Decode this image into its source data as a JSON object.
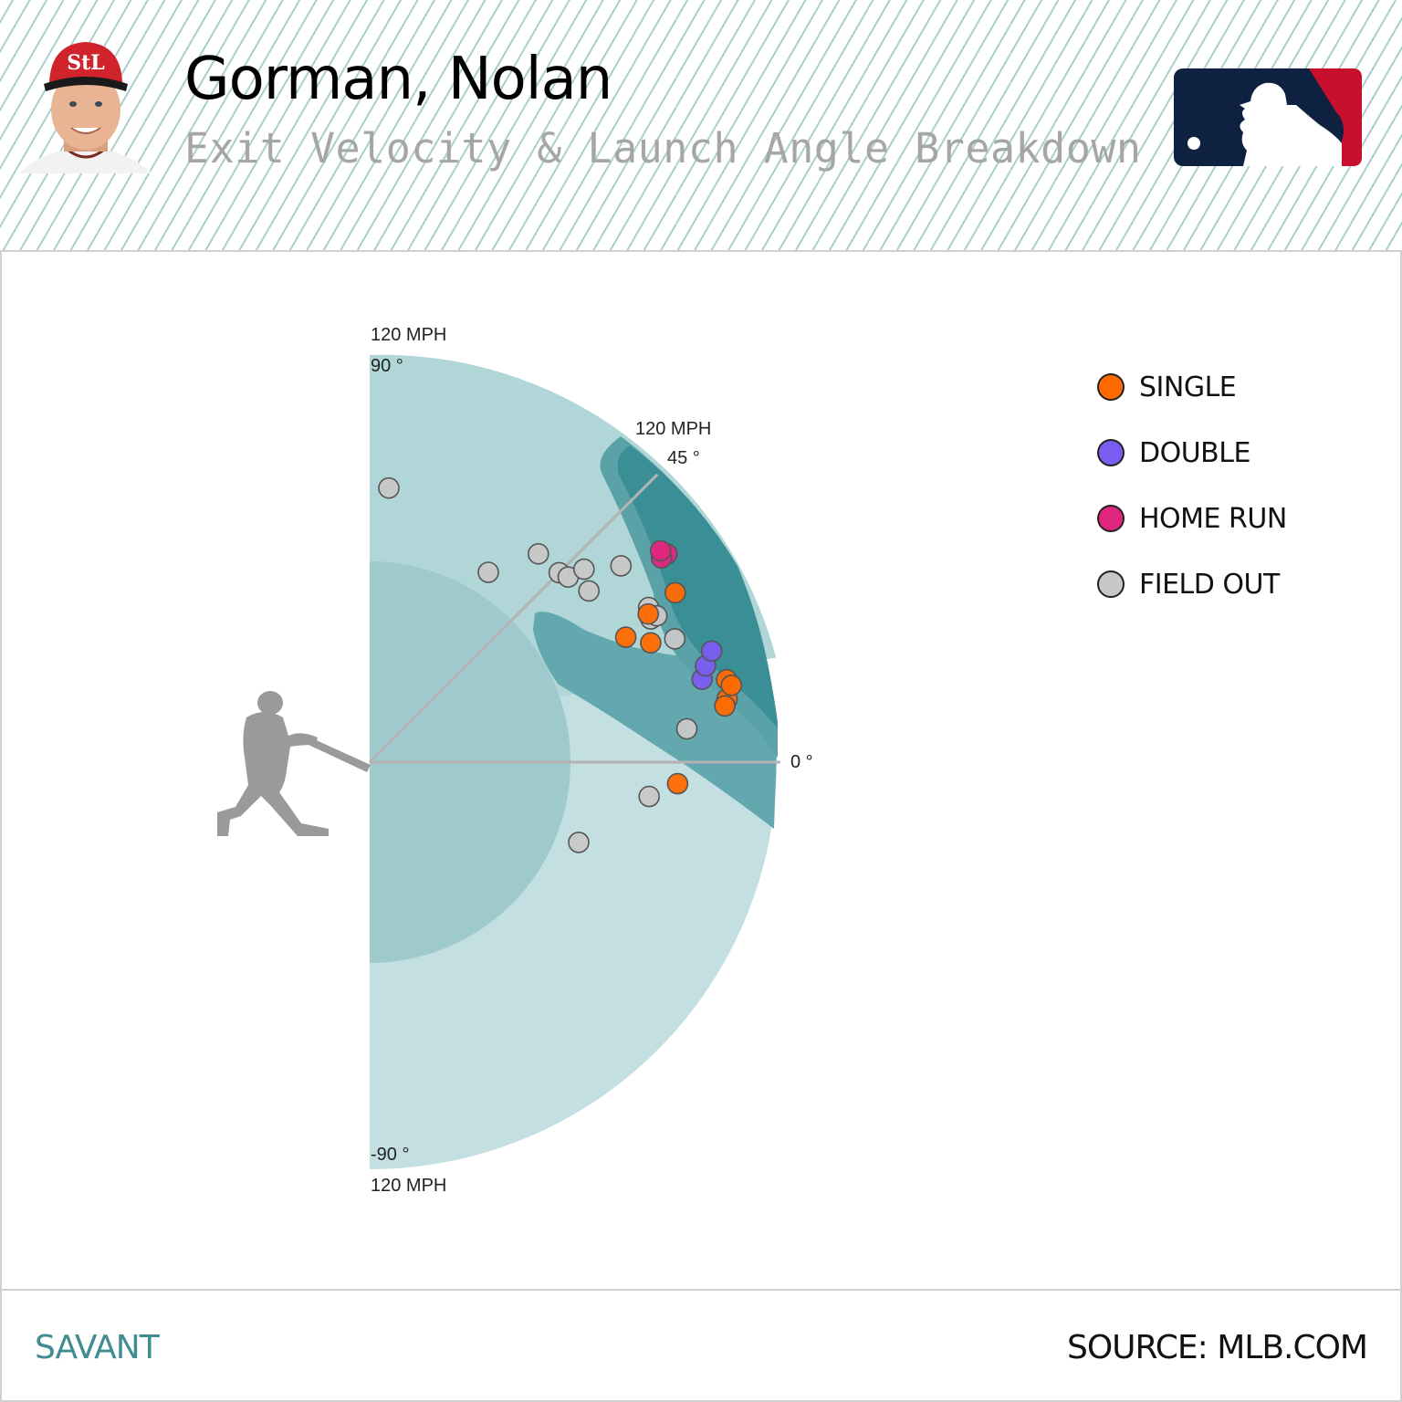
{
  "header": {
    "player_name": "Gorman, Nolan",
    "subtitle": "Exit Velocity & Launch Angle Breakdown",
    "team_cap_logo": "STL",
    "league_logo": "mlb-logo"
  },
  "axis_labels": {
    "top_speed": "120 MPH",
    "top_angle": "90 °",
    "mid_speed": "120 MPH",
    "mid_angle": "45 °",
    "zero_angle": "0 °",
    "bottom_angle": "-90 °",
    "bottom_speed": "120 MPH"
  },
  "legend": {
    "items": [
      {
        "label": "SINGLE",
        "color": "#ff6a00"
      },
      {
        "label": "DOUBLE",
        "color": "#7b5cf0"
      },
      {
        "label": "HOME RUN",
        "color": "#e0267f"
      },
      {
        "label": "FIELD OUT",
        "color": "#c8c8c8"
      }
    ]
  },
  "colors": {
    "outer_zone": "#c3dfe1",
    "upper_zone": "#b1d6d8",
    "inner_zone": "#9ecacd",
    "solid_contact": "#62a8ae",
    "barrel_edge": "#5aa1a8",
    "barrel": "#3a8f96",
    "axis_line": "#b3b3b3"
  },
  "chart_data": {
    "type": "scatter",
    "title": "Exit Velocity & Launch Angle Breakdown",
    "subtitle": "Gorman, Nolan",
    "coordinate_system": "polar (launch angle vs exit velocity)",
    "angle_range_deg": [
      -90,
      90
    ],
    "radius_range_mph": [
      0,
      120
    ],
    "angle_ticks": [
      "90 °",
      "45 °",
      "0 °",
      "-90 °"
    ],
    "radius_ticks": [
      "120 MPH"
    ],
    "legend_position": "right",
    "series": [
      {
        "name": "SINGLE",
        "color": "#ff6a00",
        "points": [
          {
            "ev": 103,
            "la": 29
          },
          {
            "ev": 93,
            "la": 28
          },
          {
            "ev": 90,
            "la": 23
          },
          {
            "ev": 84,
            "la": 26
          },
          {
            "ev": 108,
            "la": 13
          },
          {
            "ev": 107,
            "la": 10
          },
          {
            "ev": 106,
            "la": 9
          },
          {
            "ev": 109,
            "la": 12
          },
          {
            "ev": 91,
            "la": -4
          }
        ]
      },
      {
        "name": "DOUBLE",
        "color": "#7b5cf0",
        "points": [
          {
            "ev": 101,
            "la": 14
          },
          {
            "ev": 103,
            "la": 16
          },
          {
            "ev": 106,
            "la": 18
          }
        ]
      },
      {
        "name": "HOME RUN",
        "color": "#e0267f",
        "points": [
          {
            "ev": 107,
            "la": 35
          },
          {
            "ev": 105,
            "la": 35
          },
          {
            "ev": 106,
            "la": 36
          }
        ]
      },
      {
        "name": "FIELD OUT",
        "color": "#c8c8c8",
        "points": [
          {
            "ev": 81,
            "la": 86
          },
          {
            "ev": 79,
            "la": 51
          },
          {
            "ev": 79,
            "la": 45
          },
          {
            "ev": 80,
            "la": 43
          },
          {
            "ev": 66,
            "la": 58
          },
          {
            "ev": 82,
            "la": 38
          },
          {
            "ev": 94,
            "la": 38
          },
          {
            "ev": 93,
            "la": 27
          },
          {
            "ev": 94,
            "la": 29
          },
          {
            "ev": 95,
            "la": 27
          },
          {
            "ev": 97,
            "la": 22
          },
          {
            "ev": 94,
            "la": 6
          },
          {
            "ev": 83,
            "la": -7
          },
          {
            "ev": 66,
            "la": -21
          },
          {
            "ev": 85,
            "la": 42
          }
        ]
      }
    ]
  },
  "footer": {
    "brand": "SAVANT",
    "source": "SOURCE: MLB.COM"
  }
}
